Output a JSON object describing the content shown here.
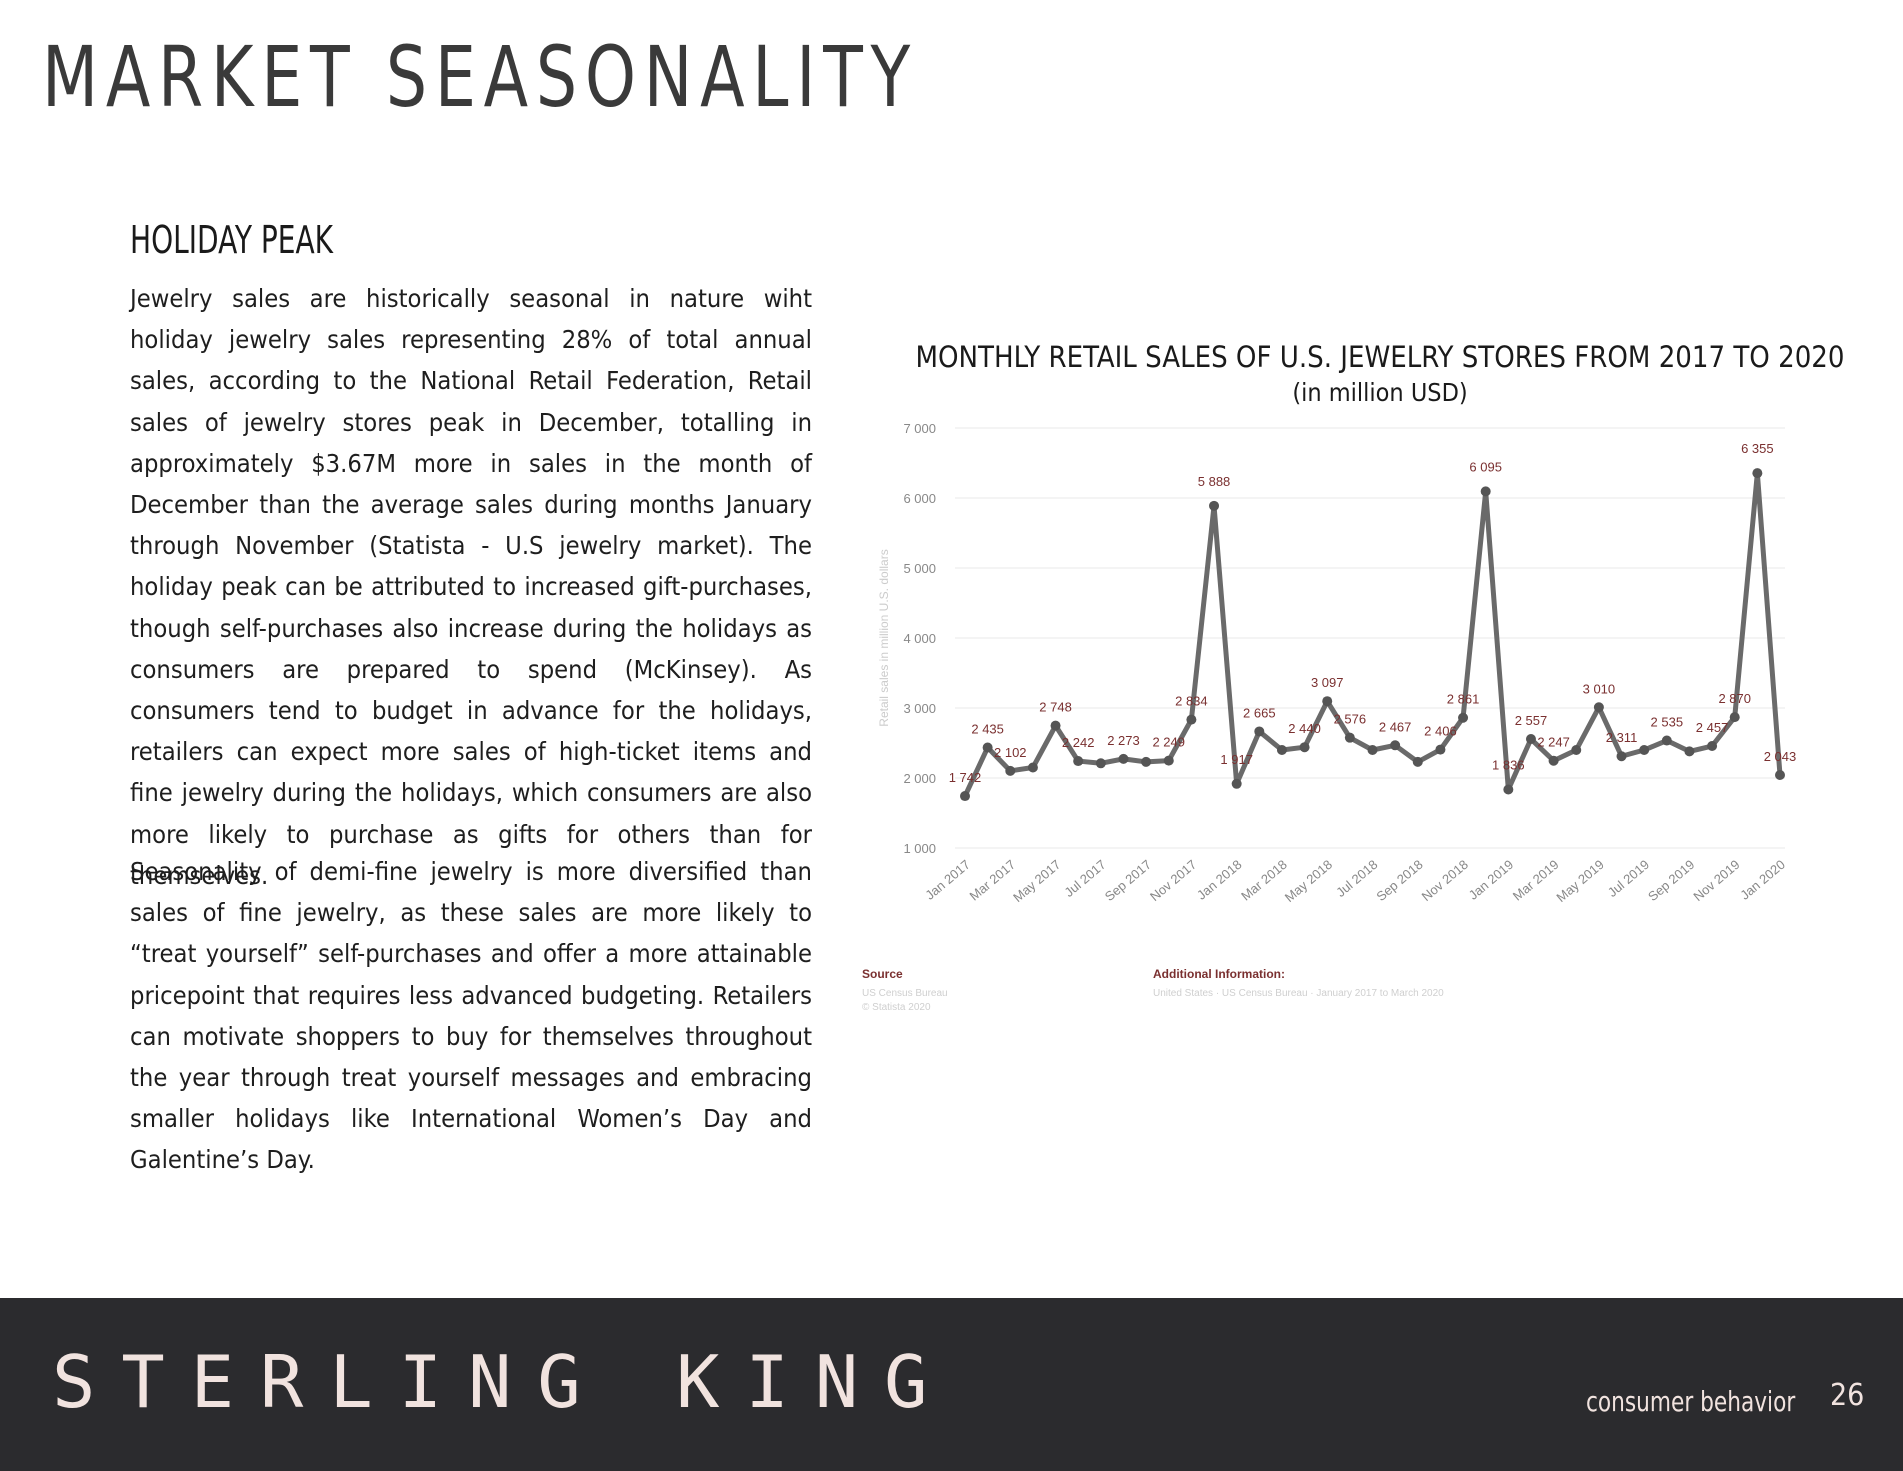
{
  "page": {
    "title": "MARKET SEASONALITY",
    "section_heading": "HOLIDAY PEAK",
    "paragraphs": [
      "Jewelry sales are historically seasonal in nature wiht holiday jewelry sales representing 28% of total annual sales, accord­ing to the National Retail Federation,  Retail sales of jewelry stores peak in December, totalling in approximately $3.67M more in sales in the month of December than the average sales during months January through November (Statista - U.S jew­elry market). The holiday peak can be attributed to increased gift-purchases, though self-purchases also increase during the holidays as consumers are prepared to spend (McKinsey). As consumers tend to budget in advance for the holidays, retail­ers can expect more sales of high-ticket items and fine jewelry during the holidays, which consumers are also more likely to purchase as gifts for others than for themselves.",
      "Seasonality of demi-fine jewelry is more diversified than sales of fine jewelry, as these sales are more likely to “treat your­self” self-purchases and offer a more attainable pricepoint that requires less  advanced budgeting. Retailers can motivate shoppers to buy for themselves throughout the year through treat yourself messages and embracing smaller holidays like International Women’s Day and Galentine’s Day."
    ]
  },
  "chart_data": {
    "type": "line",
    "title": "MONTHLY RETAIL SALES OF U.S. JEWELRY STORES FROM 2017 TO 2020",
    "subtitle": "(in million USD)",
    "ylabel": "Retail sales in million U.S. dollars",
    "xlabel": "",
    "ylim": [
      1000,
      7000
    ],
    "yticks": [
      "1 000",
      "2 000",
      "3 000",
      "4 000",
      "5 000",
      "6 000",
      "7 000"
    ],
    "grid": true,
    "x": [
      "Jan 2017",
      "Feb 2017",
      "Mar 2017",
      "Apr 2017",
      "May 2017",
      "Jun 2017",
      "Jul 2017",
      "Aug 2017",
      "Sep 2017",
      "Oct 2017",
      "Nov 2017",
      "Dec 2017",
      "Jan 2018",
      "Feb 2018",
      "Mar 2018",
      "Apr 2018",
      "May 2018",
      "Jun 2018",
      "Jul 2018",
      "Aug 2018",
      "Sep 2018",
      "Oct 2018",
      "Nov 2018",
      "Dec 2018",
      "Jan 2019",
      "Feb 2019",
      "Mar 2019",
      "Apr 2019",
      "May 2019",
      "Jun 2019",
      "Jul 2019",
      "Aug 2019",
      "Sep 2019",
      "Oct 2019",
      "Nov 2019",
      "Dec 2019",
      "Jan 2020"
    ],
    "xtick_labels": [
      "Jan 2017",
      "Mar 2017",
      "May 2017",
      "Jul 2017",
      "Sep 2017",
      "Nov 2017",
      "Jan 2018",
      "Mar 2018",
      "May 2018",
      "Jul 2018",
      "Sep 2018",
      "Nov 2018",
      "Jan 2019",
      "Mar 2019",
      "May 2019",
      "Jul 2019",
      "Sep 2019",
      "Nov 2019",
      "Jan 2020"
    ],
    "series": [
      {
        "values": [
          1742,
          2435,
          2102,
          2150,
          2748,
          2242,
          2210,
          2273,
          2230,
          2249,
          2834,
          5888,
          1917,
          2665,
          2400,
          2440,
          3097,
          2576,
          2400,
          2467,
          2230,
          2406,
          2861,
          6095,
          1836,
          2557,
          2247,
          2400,
          3010,
          2311,
          2400,
          2535,
          2380,
          2457,
          2870,
          6355,
          2043
        ],
        "labels": [
          "1 742",
          "2 435",
          "2 102",
          "",
          "2 748",
          "2 242",
          "",
          "2 273",
          "",
          "2 249",
          "2 834",
          "5 888",
          "1 917",
          "2 665",
          "",
          "2 440",
          "3 097",
          "2 576",
          "",
          "2 467",
          "",
          "2 406",
          "2 861",
          "6 095",
          "1 836",
          "2 557",
          "2 247",
          "",
          "3 010",
          "2 311",
          "",
          "2 535",
          "",
          "2 457",
          "2 870",
          "6 355",
          "2 043"
        ]
      }
    ],
    "source_heading": "Source",
    "source_lines": [
      "US Census Bureau",
      "© Statista 2020"
    ],
    "additional_heading": "Additional Information:",
    "additional_text": "United States · US Census Bureau · January 2017 to March 2020",
    "colors": {
      "line": "#6a6a6a",
      "marker": "#555555",
      "label": "#7a3030",
      "grid": "#e9e9e9",
      "axis_text": "#888888"
    }
  },
  "footer": {
    "brand": "STERLING KING",
    "section": "consumer behavior",
    "page_number": "26"
  }
}
